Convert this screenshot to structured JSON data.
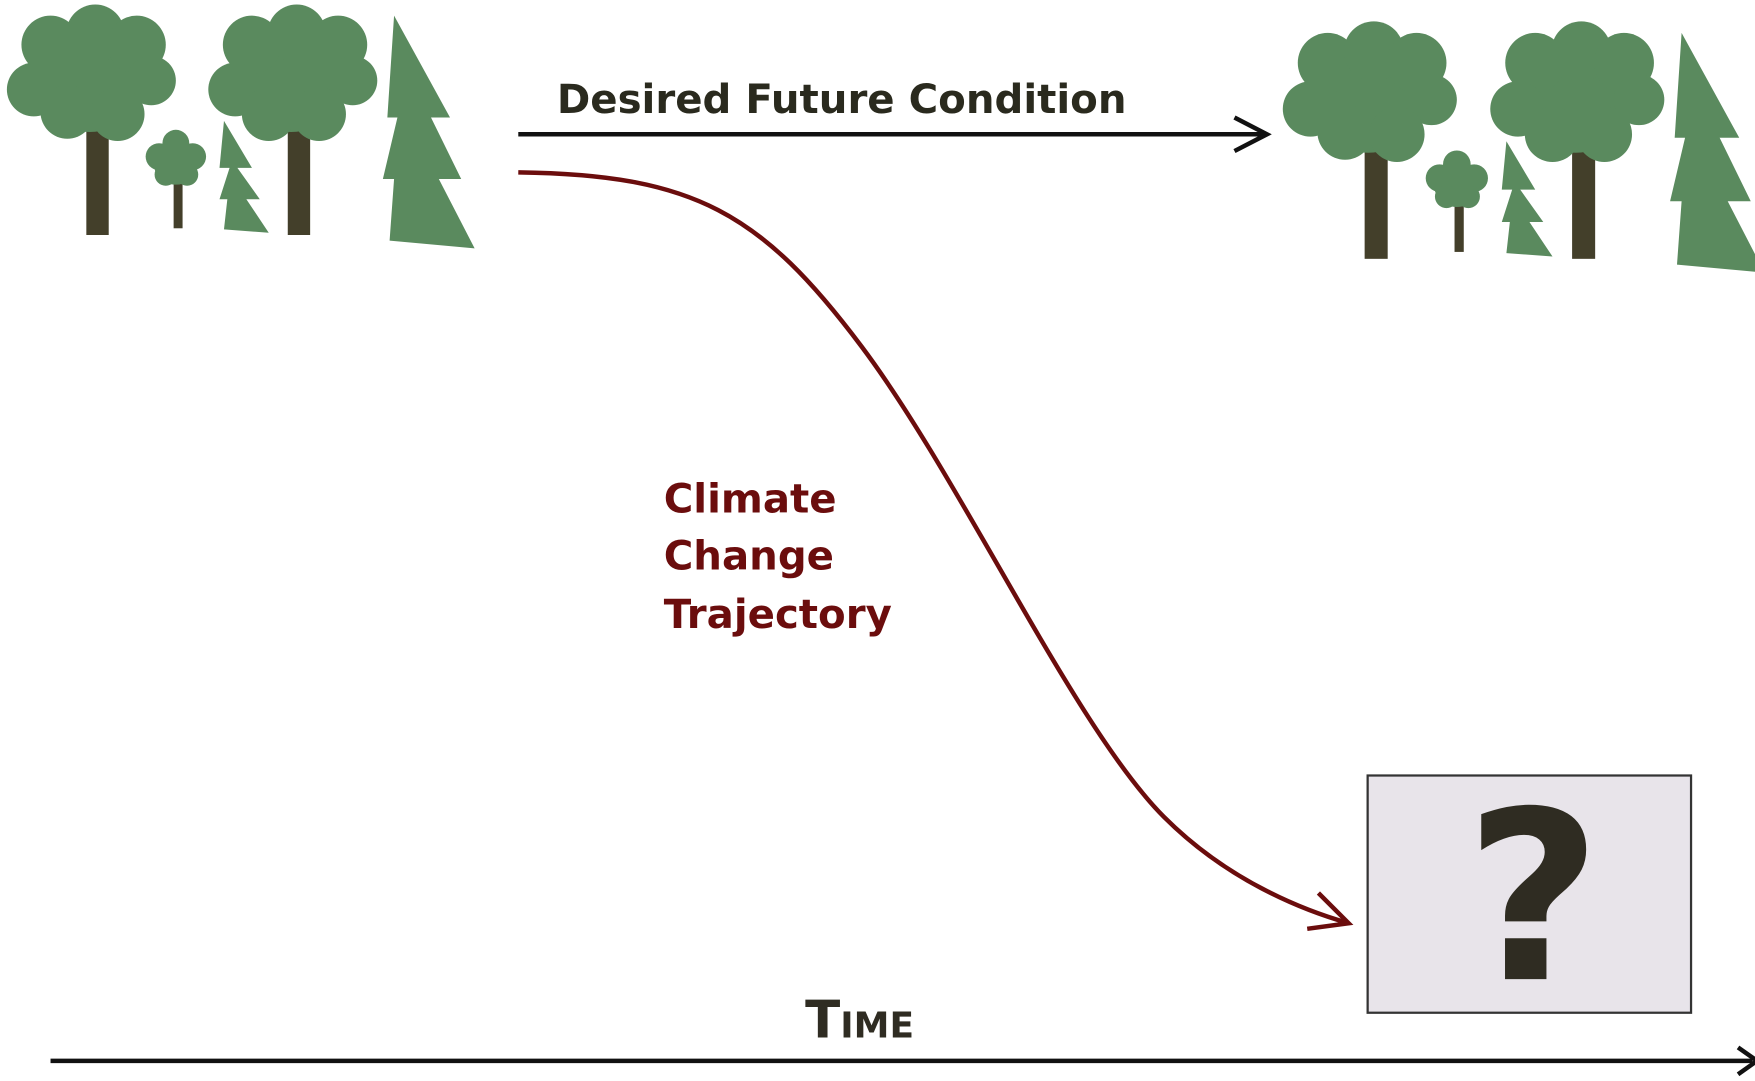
{
  "desired": {
    "label": "Desired Future Condition"
  },
  "trajectory": {
    "lines": [
      "Climate",
      "Change",
      "Trajectory"
    ]
  },
  "axis": {
    "label": "Time"
  },
  "unknown": {
    "label": "?"
  }
}
